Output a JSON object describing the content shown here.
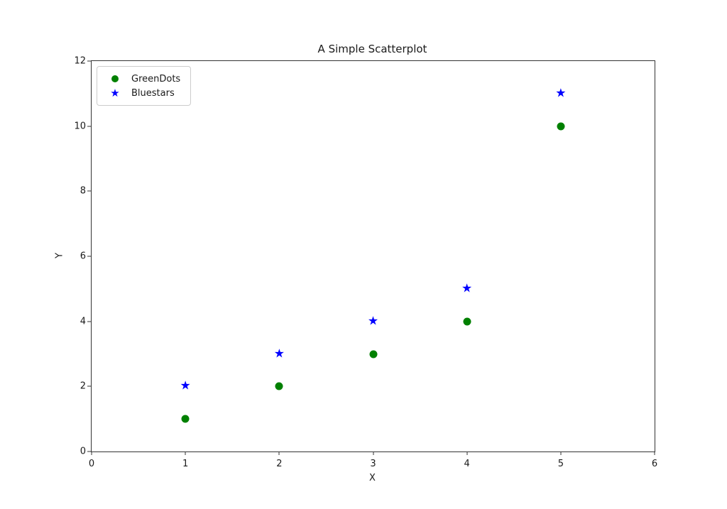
{
  "chart_data": {
    "type": "scatter",
    "title": "A Simple Scatterplot",
    "xlabel": "X",
    "ylabel": "Y",
    "xlim": [
      0,
      6
    ],
    "ylim": [
      0,
      12
    ],
    "x_ticks": [
      0,
      1,
      2,
      3,
      4,
      5,
      6
    ],
    "y_ticks": [
      0,
      2,
      4,
      6,
      8,
      10,
      12
    ],
    "grid": false,
    "legend_position": "upper left",
    "background_color": "#ffffff",
    "spine_color": "#333333",
    "series": [
      {
        "name": "GreenDots",
        "marker": "circle",
        "color": "#008000",
        "x": [
          1,
          2,
          3,
          4,
          5
        ],
        "y": [
          1,
          2,
          3,
          4,
          10
        ]
      },
      {
        "name": "Bluestars",
        "marker": "star",
        "color": "#0000ff",
        "x": [
          1,
          2,
          3,
          4,
          5
        ],
        "y": [
          2,
          3,
          4,
          5,
          11
        ]
      }
    ]
  }
}
